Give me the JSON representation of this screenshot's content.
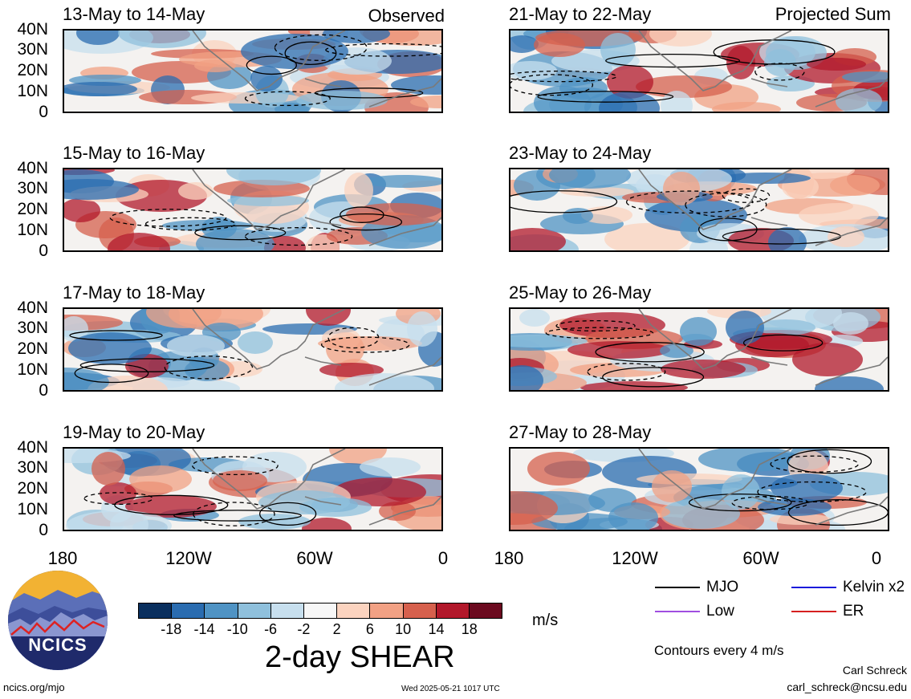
{
  "panels_left": [
    {
      "title": "13-May to 14-May",
      "tag": "Observed"
    },
    {
      "title": "15-May to 16-May",
      "tag": ""
    },
    {
      "title": "17-May to 18-May",
      "tag": ""
    },
    {
      "title": "19-May to 20-May",
      "tag": ""
    }
  ],
  "panels_right": [
    {
      "title": "21-May to 22-May",
      "tag": "Projected Sum"
    },
    {
      "title": "23-May to 24-May",
      "tag": ""
    },
    {
      "title": "25-May to 26-May",
      "tag": ""
    },
    {
      "title": "27-May to 28-May",
      "tag": ""
    }
  ],
  "lat_labels": [
    "40N",
    "30N",
    "20N",
    "10N",
    "0"
  ],
  "lon_labels": [
    "180",
    "120W",
    "60W",
    "0"
  ],
  "colorbar": {
    "tick_labels": [
      "-18",
      "-14",
      "-10",
      "-6",
      "-2",
      "2",
      "6",
      "10",
      "14",
      "18"
    ],
    "colors": [
      "#0a2f5e",
      "#2a6cb0",
      "#4f93c4",
      "#8fc0dc",
      "#c7dfee",
      "#f7f7f7",
      "#fbd3bf",
      "#f2a184",
      "#d6604d",
      "#b2182b",
      "#6b0a1f"
    ],
    "units": "m/s",
    "title": "2-day SHEAR"
  },
  "legend": {
    "items": [
      {
        "label": "MJO",
        "color": "#000000"
      },
      {
        "label": "Kelvin x2",
        "color": "#1a1adb"
      },
      {
        "label": "Low",
        "color": "#a04ee0"
      },
      {
        "label": "ER",
        "color": "#d62020"
      }
    ],
    "note": "Contours every 4 m/s"
  },
  "footer": {
    "site": "ncics.org/mjo",
    "timestamp": "Wed 2025-05-21 1017 UTC",
    "author": "Carl Schreck",
    "email": "carl_schreck@ncsu.edu"
  },
  "logo": {
    "text": "NCICS"
  }
}
